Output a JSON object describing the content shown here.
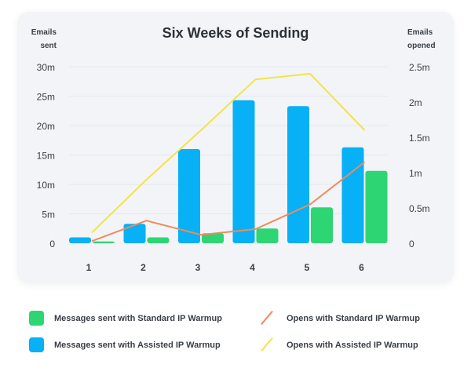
{
  "chart_data": {
    "type": "bar+line",
    "title": "Six Weeks of Sending",
    "ylabel_left": [
      "Emails",
      "sent"
    ],
    "ylabel_right": [
      "Emails",
      "opened"
    ],
    "categories": [
      "1",
      "2",
      "3",
      "4",
      "5",
      "6"
    ],
    "left_ticks": [
      "0",
      "5m",
      "10m",
      "15m",
      "20m",
      "25m",
      "30m"
    ],
    "right_ticks": [
      "0",
      "0.5m",
      "1m",
      "1.5m",
      "2m",
      "2.5m"
    ],
    "ylim_left": [
      0,
      30
    ],
    "ylim_right": [
      0,
      2.5
    ],
    "units": "millions",
    "grid": true,
    "legend_position": "bottom",
    "bar_series": [
      {
        "name": "Messages sent with Assisted IP Warmup",
        "color": "#08b0f5",
        "values": [
          1.0,
          3.3,
          16.0,
          24.3,
          23.3,
          16.3
        ]
      },
      {
        "name": "Messages sent with Standard IP Warmup",
        "color": "#2ed573",
        "values": [
          0.3,
          1.0,
          1.7,
          2.5,
          6.1,
          12.3
        ]
      }
    ],
    "line_series": [
      {
        "name": "Opens with Standard IP Warmup",
        "color": "#f08a5d",
        "values": [
          0.03,
          0.32,
          0.12,
          0.2,
          0.55,
          1.15
        ]
      },
      {
        "name": "Opens with Assisted IP Warmup",
        "color": "#f2e44a",
        "values": [
          0.15,
          0.9,
          1.6,
          2.32,
          2.4,
          1.6
        ]
      }
    ]
  },
  "legend": [
    {
      "label": "Messages sent with Standard IP Warmup",
      "color": "#2ed573",
      "kind": "box"
    },
    {
      "label": "Opens with Standard IP Warmup",
      "color": "#f08a5d",
      "kind": "line"
    },
    {
      "label": "Messages sent with Assisted IP Warmup",
      "color": "#08b0f5",
      "kind": "box"
    },
    {
      "label": "Opens with Assisted IP Warmup",
      "color": "#f2e44a",
      "kind": "line"
    }
  ]
}
